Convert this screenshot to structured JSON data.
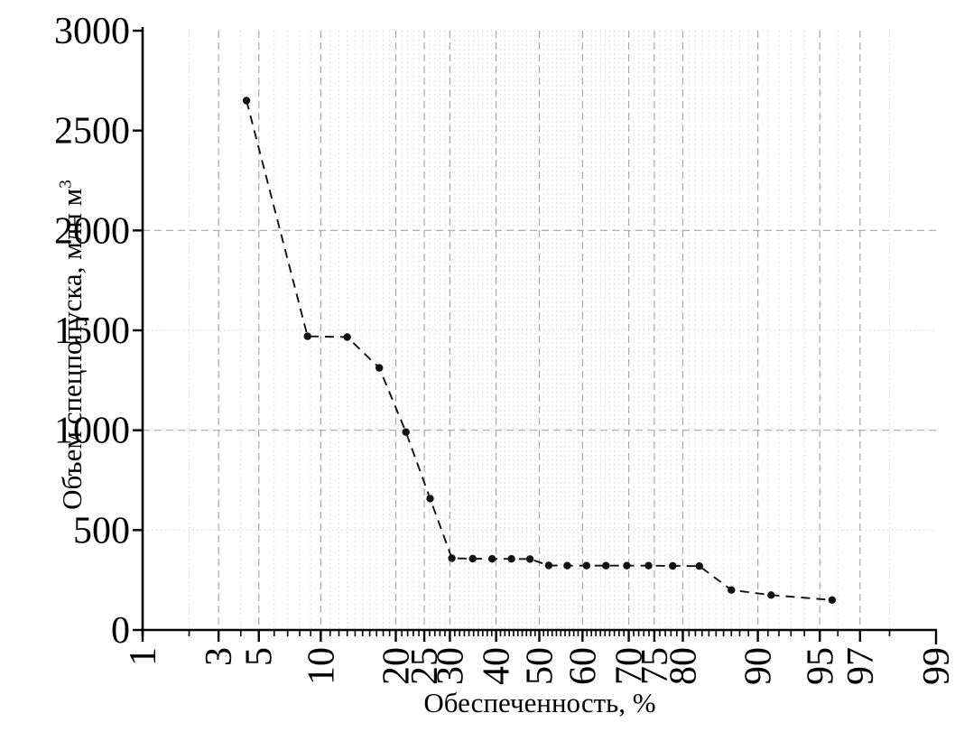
{
  "chart_data": {
    "type": "line",
    "title": "",
    "xlabel": "Обеспеченность, %",
    "ylabel": "Объем спецпопуска, млн м",
    "ylabel_superscript": "3",
    "x_scale": "normal_probability",
    "xlim": [
      1,
      99
    ],
    "ylim": [
      0,
      3000
    ],
    "x_ticks_labeled": [
      1,
      3,
      5,
      10,
      20,
      25,
      30,
      40,
      50,
      60,
      70,
      75,
      80,
      90,
      95,
      97,
      99
    ],
    "x_ticks_minor": "every integer percent from 2 to 98 between labeled ticks",
    "y_ticks_labeled": [
      0,
      500,
      1000,
      1500,
      2000,
      2500,
      3000
    ],
    "grid": {
      "vertical_major_at": [
        3,
        5,
        10,
        20,
        25,
        30,
        40,
        50,
        60,
        70,
        75,
        80,
        90,
        95,
        97
      ],
      "horizontal_major_at": [
        1000,
        2000
      ],
      "horizontal_minor_at": [
        500,
        1500
      ],
      "major_style": "dashed",
      "minor_style": "dotted"
    },
    "legend": "none",
    "series": [
      {
        "name": "Объем спецпопуска",
        "marker": "filled-circle",
        "line_style": "dashed",
        "color": "#111111",
        "x": [
          4.3,
          8.7,
          13.0,
          17.4,
          21.7,
          26.1,
          30.4,
          34.8,
          39.1,
          43.5,
          47.8,
          52.2,
          56.5,
          60.9,
          65.2,
          69.6,
          73.9,
          78.3,
          82.6,
          87.0,
          91.3,
          95.7
        ],
        "y": [
          2650,
          1470,
          1466,
          1312,
          991,
          658,
          359,
          357,
          356,
          356,
          355,
          323,
          322,
          322,
          322,
          322,
          322,
          321,
          320,
          200,
          175,
          150
        ]
      }
    ]
  },
  "styles": {
    "background": "#ffffff",
    "axis_color": "#000000",
    "grid_major_color": "#a8a8a8",
    "grid_minor_color": "#d9d9d9",
    "text_color": "#000000"
  }
}
